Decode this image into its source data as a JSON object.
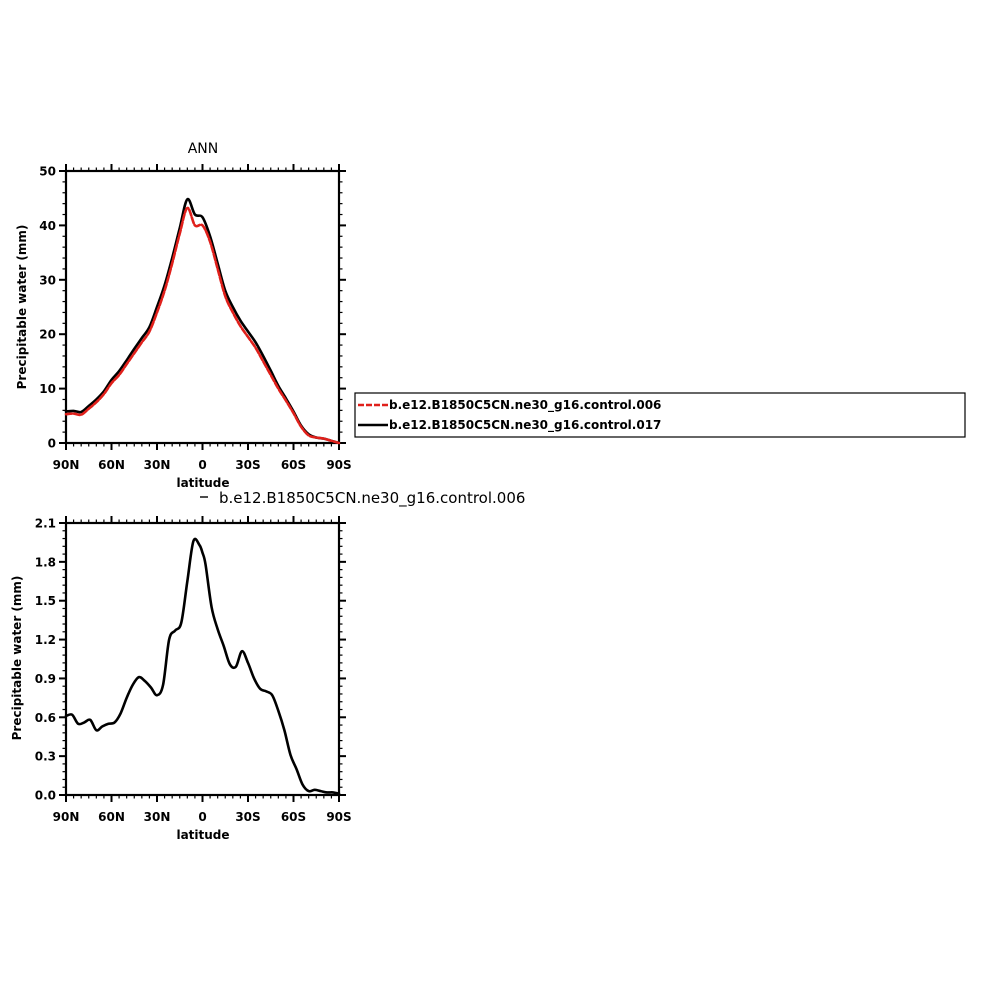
{
  "chart_data": [
    {
      "type": "line",
      "title": "ANN",
      "xlabel": "latitude",
      "ylabel": "Precipitable water (mm)",
      "xlim": [
        90,
        -90
      ],
      "ylim": [
        0,
        50
      ],
      "x_ticks": [
        90,
        60,
        30,
        0,
        -30,
        -60,
        -90
      ],
      "x_tick_labels": [
        "90N",
        "60N",
        "30N",
        "0",
        "30S",
        "60S",
        "90S"
      ],
      "y_ticks": [
        0,
        10,
        20,
        30,
        40,
        50
      ],
      "y_tick_labels": [
        "0",
        "10",
        "20",
        "30",
        "40",
        "50"
      ],
      "grid": false,
      "legend_position": "right",
      "series": [
        {
          "name": "b.e12.B1850C5CN.ne30_g16.control.006",
          "color": "#e0201b",
          "style": "dashed",
          "x": [
            90,
            85,
            80,
            75,
            70,
            65,
            60,
            55,
            50,
            45,
            40,
            35,
            30,
            25,
            20,
            15,
            10,
            5,
            0,
            -5,
            -10,
            -15,
            -20,
            -25,
            -30,
            -35,
            -40,
            -45,
            -50,
            -55,
            -60,
            -65,
            -70,
            -75,
            -80,
            -85,
            -90
          ],
          "values": [
            5.3,
            5.4,
            5.2,
            6.3,
            7.5,
            9,
            11,
            12.5,
            14.5,
            16.5,
            18.5,
            20.5,
            24,
            28,
            33,
            38.5,
            43.2,
            40,
            40,
            37,
            32,
            27,
            24,
            21.5,
            19.5,
            17.5,
            15,
            12.5,
            10,
            7.8,
            5.5,
            3,
            1.4,
            1,
            0.8,
            0.4,
            0
          ]
        },
        {
          "name": "b.e12.B1850C5CN.ne30_g16.control.017",
          "color": "#000000",
          "style": "solid",
          "x": [
            90,
            85,
            80,
            75,
            70,
            65,
            60,
            55,
            50,
            45,
            40,
            35,
            30,
            25,
            20,
            15,
            10,
            5,
            0,
            -5,
            -10,
            -15,
            -20,
            -25,
            -30,
            -35,
            -40,
            -45,
            -50,
            -55,
            -60,
            -65,
            -70,
            -75,
            -80,
            -85,
            -90
          ],
          "values": [
            5.8,
            5.9,
            5.7,
            6.8,
            8,
            9.5,
            11.6,
            13.2,
            15.2,
            17.3,
            19.3,
            21.3,
            25,
            29,
            34,
            39.5,
            44.8,
            42,
            41.5,
            38,
            33,
            28,
            25,
            22.5,
            20.5,
            18.5,
            16,
            13.3,
            10.5,
            8.2,
            5.8,
            3.2,
            1.6,
            1,
            0.8,
            0.4,
            0
          ]
        }
      ]
    },
    {
      "type": "line",
      "title": "b.e12.B1850C5CN.ne30_g16.control.006",
      "xlabel": "latitude",
      "ylabel": "Precipitable water (mm)",
      "xlim": [
        90,
        -90
      ],
      "ylim": [
        0,
        2.1
      ],
      "x_ticks": [
        90,
        60,
        30,
        0,
        -30,
        -60,
        -90
      ],
      "x_tick_labels": [
        "90N",
        "60N",
        "30N",
        "0",
        "30S",
        "60S",
        "90S"
      ],
      "y_ticks": [
        0,
        0.3,
        0.6,
        0.9,
        1.2,
        1.5,
        1.8,
        2.1
      ],
      "y_tick_labels": [
        "0.0",
        "0.3",
        "0.6",
        "0.9",
        "1.2",
        "1.5",
        "1.8",
        "2.1"
      ],
      "grid": false,
      "series": [
        {
          "color": "#000000",
          "style": "solid",
          "x": [
            90,
            86,
            82,
            78,
            74,
            70,
            66,
            62,
            58,
            54,
            50,
            46,
            42,
            38,
            34,
            30,
            26,
            22,
            18,
            14,
            10,
            6,
            2,
            0,
            -2,
            -6,
            -10,
            -14,
            -18,
            -22,
            -26,
            -30,
            -34,
            -38,
            -42,
            -46,
            -50,
            -54,
            -58,
            -62,
            -66,
            -70,
            -74,
            -78,
            -82,
            -86,
            -90
          ],
          "values": [
            0.61,
            0.62,
            0.55,
            0.56,
            0.58,
            0.5,
            0.53,
            0.55,
            0.56,
            0.63,
            0.75,
            0.85,
            0.91,
            0.88,
            0.83,
            0.77,
            0.85,
            1.2,
            1.27,
            1.33,
            1.65,
            1.96,
            1.93,
            1.87,
            1.78,
            1.45,
            1.28,
            1.15,
            1.01,
            0.99,
            1.11,
            1.02,
            0.9,
            0.82,
            0.8,
            0.77,
            0.65,
            0.5,
            0.31,
            0.2,
            0.08,
            0.03,
            0.04,
            0.03,
            0.02,
            0.02,
            0.01
          ]
        }
      ]
    }
  ]
}
